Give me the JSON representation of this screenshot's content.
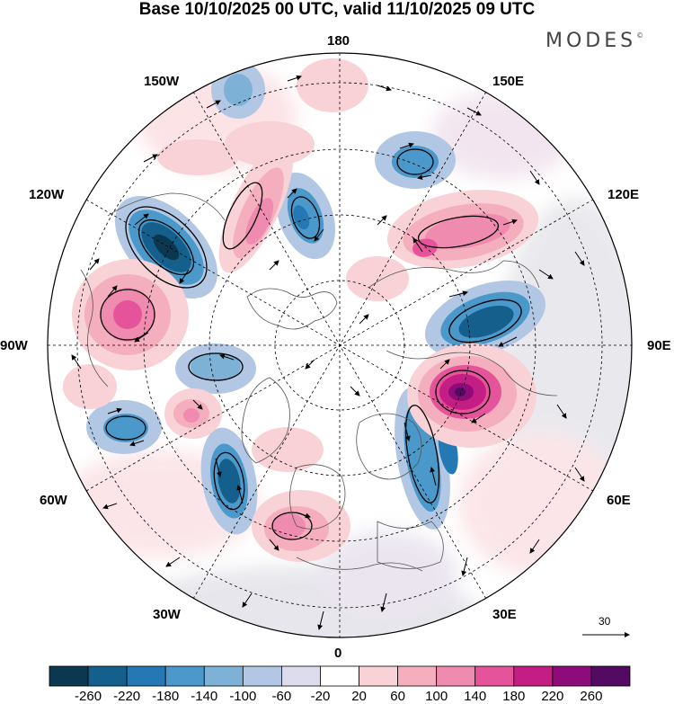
{
  "title": "Base 10/10/2025 00 UTC, valid 11/10/2025 09 UTC",
  "brand": "MODES",
  "brand_mark": "©",
  "lon_labels": {
    "top": "180",
    "bottom": "0",
    "left": "90W",
    "right": "90E",
    "ul1": "150W",
    "ul2": "120W",
    "ur1": "150E",
    "ur2": "120E",
    "ll1": "60W",
    "ll2": "30W",
    "lr1": "60E",
    "lr2": "30E"
  },
  "reference_vector": "30",
  "colorbar": {
    "colors": [
      "#0b3850",
      "#155f8c",
      "#2479b4",
      "#4b98ca",
      "#7eb1d6",
      "#b1c7e3",
      "#dcdcec",
      "#ffffff",
      "#f8d2d6",
      "#f5aebe",
      "#f08bb0",
      "#e5549b",
      "#c41e84",
      "#8e0b7a",
      "#530a62"
    ],
    "ticks": [
      "-260",
      "-220",
      "-180",
      "-140",
      "-100",
      "-60",
      "-20",
      "20",
      "60",
      "100",
      "140",
      "180",
      "220",
      "260"
    ]
  },
  "anomalies": [
    {
      "name": "neg",
      "value": -240
    },
    {
      "name": "neg",
      "value": -160
    },
    {
      "name": "neg",
      "value": -140
    },
    {
      "name": "neg",
      "value": -120
    },
    {
      "name": "neg",
      "value": -160
    },
    {
      "name": "neg",
      "value": -200
    },
    {
      "name": "neg",
      "value": -100
    },
    {
      "name": "neg",
      "value": -140
    },
    {
      "name": "neg",
      "value": -120
    },
    {
      "name": "pos",
      "value": 160
    },
    {
      "name": "pos",
      "value": 140
    },
    {
      "name": "pos",
      "value": 260
    },
    {
      "name": "pos",
      "value": 130
    },
    {
      "name": "pos",
      "value": 100
    },
    {
      "name": "pos",
      "value": 120
    },
    {
      "name": "pos",
      "value": 120
    },
    {
      "name": "pos",
      "value": 80
    }
  ]
}
